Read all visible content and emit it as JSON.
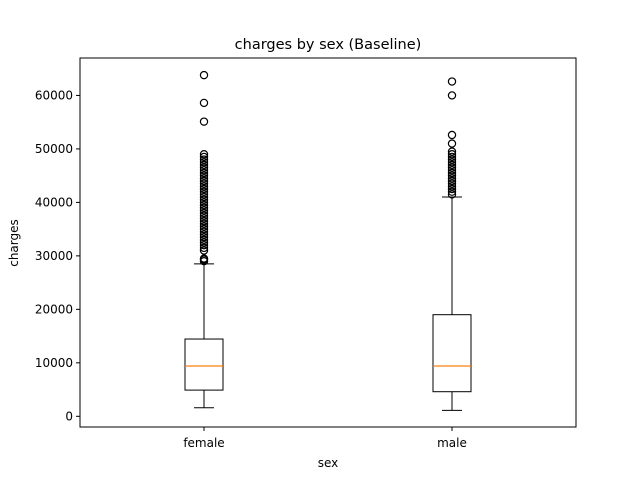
{
  "chart_data": {
    "type": "box",
    "title": "charges by sex (Baseline)",
    "xlabel": "sex",
    "ylabel": "charges",
    "ylim": [
      -2000,
      67000
    ],
    "yticks": [
      0,
      10000,
      20000,
      30000,
      40000,
      50000,
      60000
    ],
    "ytick_labels": [
      "0",
      "10000",
      "20000",
      "30000",
      "40000",
      "50000",
      "60000"
    ],
    "categories": [
      "female",
      "male"
    ],
    "grid": false,
    "colors": {
      "box": "#000000",
      "median": "#ff7f0e",
      "whisker": "#000000",
      "flier": "#000000"
    },
    "boxes": [
      {
        "name": "female",
        "whisker_low": 1600,
        "q1": 4900,
        "median": 9400,
        "q3": 14450,
        "whisker_high": 28500,
        "fliers": [
          29000,
          29300,
          29500,
          31000,
          31500,
          32000,
          32500,
          33000,
          33500,
          34000,
          34500,
          35000,
          35500,
          36000,
          36500,
          37000,
          37500,
          38000,
          38500,
          39000,
          39500,
          40000,
          40500,
          41000,
          41500,
          42000,
          42500,
          43000,
          43500,
          44000,
          44500,
          45000,
          45500,
          46000,
          46500,
          47000,
          47500,
          48000,
          48500,
          49000,
          55100,
          58600,
          63800
        ]
      },
      {
        "name": "male",
        "whisker_low": 1100,
        "q1": 4600,
        "median": 9400,
        "q3": 19000,
        "whisker_high": 41000,
        "fliers": [
          41500,
          42000,
          42500,
          43000,
          43500,
          44000,
          44500,
          45000,
          45500,
          46000,
          46500,
          47000,
          47500,
          48000,
          48500,
          49000,
          49500,
          51000,
          52600,
          60000,
          62600
        ]
      }
    ]
  }
}
